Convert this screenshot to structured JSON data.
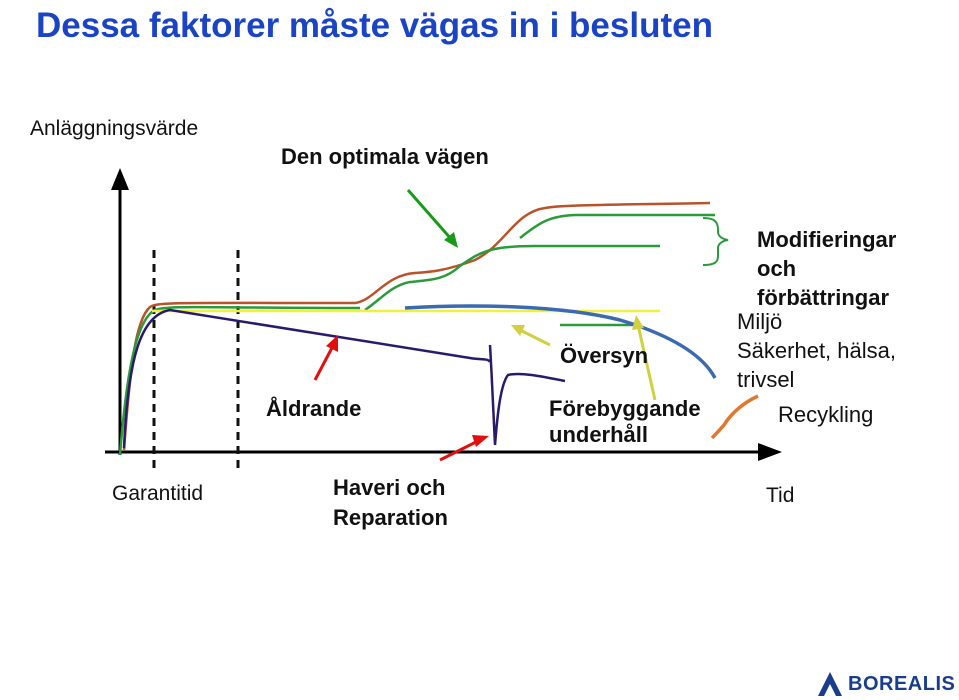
{
  "slide": {
    "title": "Dessa faktorer måste vägas in i besluten"
  },
  "diagram": {
    "y_axis_label": "Anläggningsvärde",
    "x_axis_label": "Tid",
    "optimal_path_label": "Den optimala vägen",
    "aging_label": "Åldrande",
    "overhaul_label": "Översyn",
    "preventive_label_line1": "Förebyggande",
    "preventive_label_line2": "underhåll",
    "warranty_label": "Garantitid",
    "breakdown_label_line1": "Haveri och",
    "breakdown_label_line2": "Reparation",
    "modifications_line1": "Modifieringar",
    "modifications_line2": "och",
    "modifications_line3": "förbättringar",
    "environment_label": "Miljö",
    "safety_line1": "Säkerhet, hälsa,",
    "safety_line2": "trivsel",
    "recycling_label": "Recykling"
  },
  "colors": {
    "title": "#1a44c4",
    "optimal_curve": "#b8532a",
    "green_curve": "#2a9a3a",
    "aging_curve": "#2a1a6a",
    "overhaul_line": "#f0f040",
    "recycling_arc": "#e07830",
    "blue_arc": "#3a6ab0",
    "red_arrow": "#e01010"
  },
  "logo": {
    "text": "BOREALIS"
  }
}
